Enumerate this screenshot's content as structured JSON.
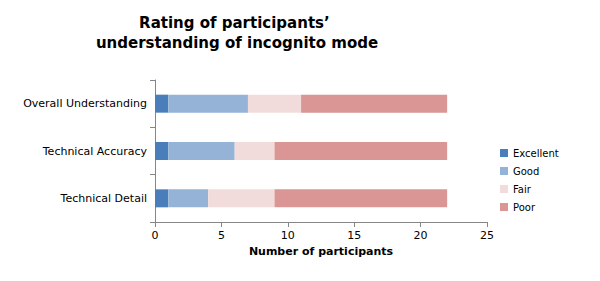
{
  "chart_data": {
    "type": "bar",
    "title": "Rating of participants’ understanding of incognito mode",
    "orientation": "horizontal",
    "stacked": true,
    "grid": false,
    "legend": "right",
    "categories": [
      "Overall Understanding",
      "Technical Accuracy",
      "Technical Detail"
    ],
    "series": [
      {
        "name": "Excellent",
        "color": "#4a7ebb",
        "values": [
          1,
          1,
          1
        ]
      },
      {
        "name": "Good",
        "color": "#95b3d7",
        "values": [
          6,
          5,
          3
        ]
      },
      {
        "name": "Fair",
        "color": "#f2dcdb",
        "values": [
          4,
          3,
          5
        ]
      },
      {
        "name": "Poor",
        "color": "#d99694",
        "values": [
          11,
          13,
          13
        ]
      }
    ],
    "xlabel": "Number of participants",
    "xlim": [
      0,
      25
    ],
    "xticks": [
      0,
      5,
      10,
      15,
      20,
      25
    ]
  }
}
